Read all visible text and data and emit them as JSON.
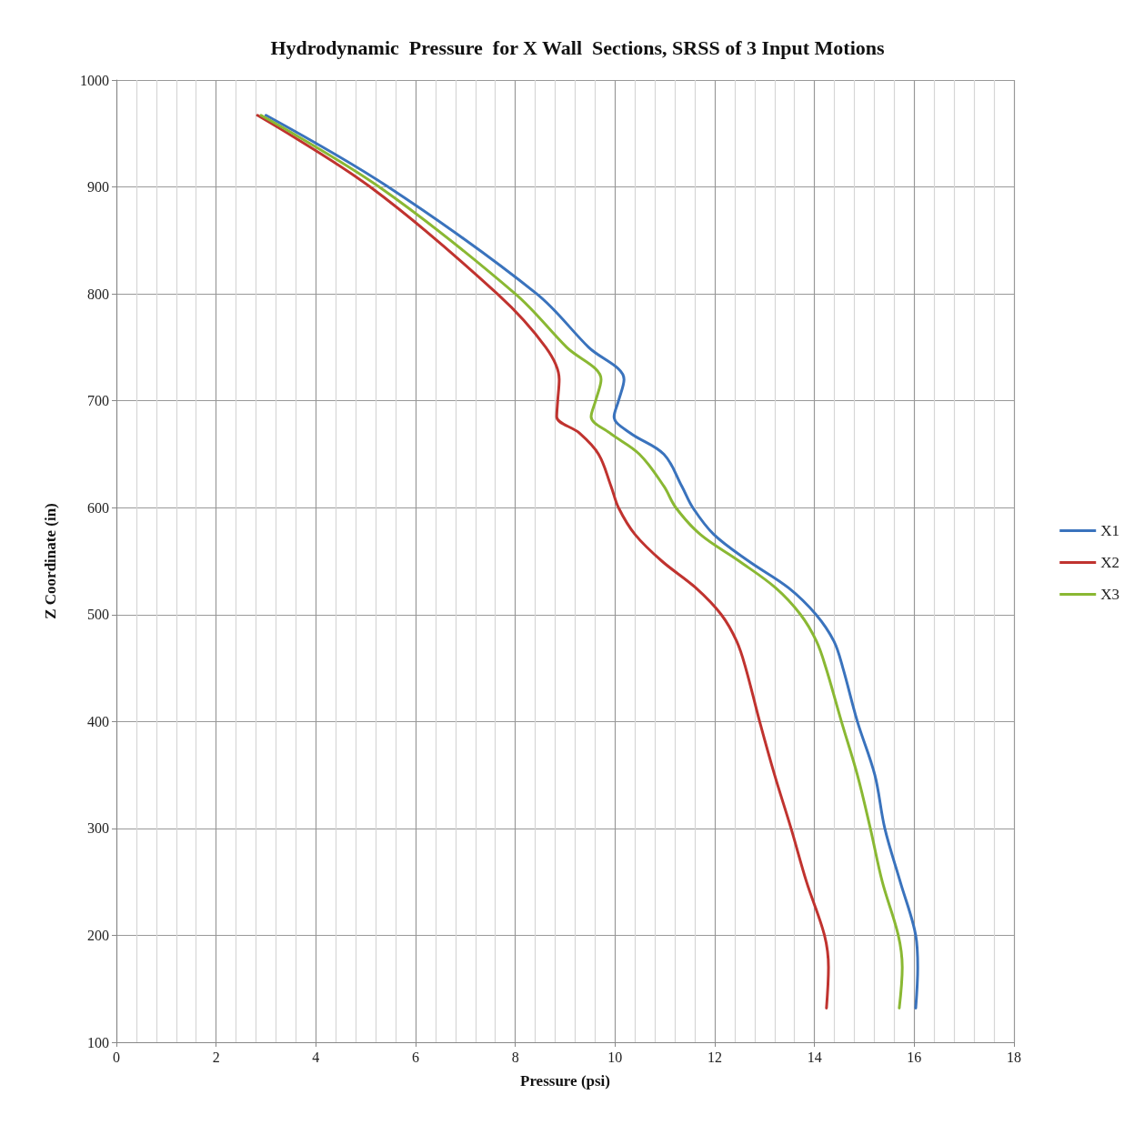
{
  "chart_data": {
    "type": "line",
    "title": "Hydrodynamic  Pressure  for X Wall  Sections, SRSS of 3 Input Motions",
    "xlabel": "Pressure (psi)",
    "ylabel": "Z Coordinate (in)",
    "xlim": [
      0,
      18
    ],
    "xticks": [
      0,
      2,
      4,
      6,
      8,
      10,
      12,
      14,
      16,
      18
    ],
    "ylim": [
      100,
      1000
    ],
    "yticks": [
      100,
      200,
      300,
      400,
      500,
      600,
      700,
      800,
      900,
      1000
    ],
    "grid": true,
    "legend": "right",
    "marker": "none",
    "line_style": "solid",
    "series": [
      {
        "name": "X1",
        "color": "#3a73bd",
        "x": [
          3.0,
          5.45,
          8.43,
          9.47,
          10.18,
          10.07,
          9.98,
          10.3,
          10.98,
          11.34,
          11.56,
          11.98,
          12.68,
          13.48,
          14.03,
          14.39,
          14.57,
          14.86,
          15.21,
          15.41,
          15.72,
          16.03,
          16.07,
          16.03
        ],
        "values": [
          967,
          900,
          800,
          750,
          720,
          700,
          685,
          670,
          650,
          620,
          600,
          575,
          550,
          525,
          500,
          475,
          450,
          400,
          350,
          300,
          250,
          200,
          170,
          132
        ]
      },
      {
        "name": "X2",
        "color": "#c0332f",
        "x": [
          2.83,
          5.09,
          7.64,
          8.61,
          8.88,
          8.85,
          8.83,
          9.28,
          9.67,
          9.92,
          10.07,
          10.4,
          10.94,
          11.62,
          12.13,
          12.44,
          12.62,
          12.9,
          13.2,
          13.53,
          13.84,
          14.2,
          14.28,
          14.24
        ],
        "values": [
          967,
          900,
          800,
          750,
          720,
          700,
          685,
          670,
          650,
          620,
          600,
          575,
          550,
          525,
          500,
          475,
          450,
          400,
          350,
          300,
          250,
          200,
          170,
          132
        ]
      },
      {
        "name": "X3",
        "color": "#8ab833",
        "x": [
          2.9,
          5.27,
          8.0,
          9.03,
          9.72,
          9.61,
          9.52,
          9.89,
          10.49,
          10.98,
          11.22,
          11.71,
          12.49,
          13.22,
          13.72,
          14.04,
          14.23,
          14.54,
          14.86,
          15.12,
          15.36,
          15.68,
          15.76,
          15.7
        ],
        "values": [
          967,
          900,
          800,
          750,
          720,
          700,
          685,
          670,
          650,
          620,
          600,
          575,
          550,
          525,
          500,
          475,
          450,
          400,
          350,
          300,
          250,
          200,
          170,
          132
        ]
      }
    ]
  }
}
